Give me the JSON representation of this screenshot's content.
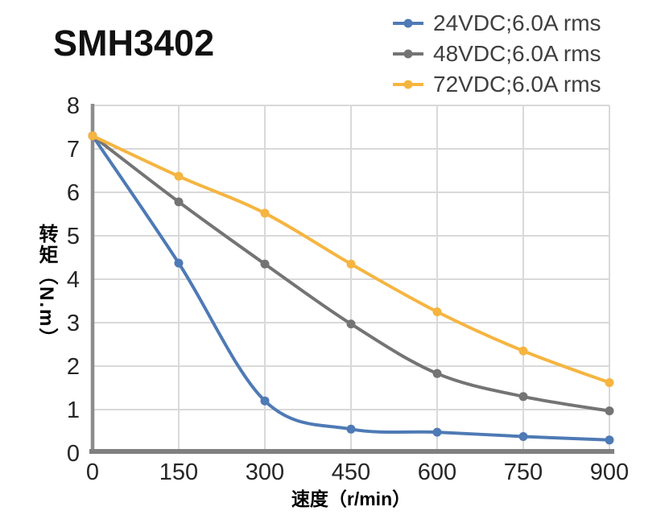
{
  "page": {
    "title": "SMH3402"
  },
  "chart_data": {
    "type": "line",
    "title": "SMH3402",
    "xlabel": "速度（r/min）",
    "ylabel": "转矩（N.m）",
    "x": [
      0,
      150,
      300,
      450,
      600,
      750,
      900
    ],
    "x_tick_labels": [
      "0",
      "150",
      "300",
      "450",
      "600",
      "750",
      "900"
    ],
    "y_ticks": [
      0,
      1,
      2,
      3,
      4,
      5,
      6,
      7,
      8
    ],
    "y_tick_labels": [
      "0",
      "1",
      "2",
      "3",
      "4",
      "5",
      "6",
      "7",
      "8"
    ],
    "xlim": [
      0,
      900
    ],
    "ylim": [
      0,
      8
    ],
    "grid": true,
    "legend_position": "top-right",
    "series": [
      {
        "name": "24VDC;6.0A rms",
        "color": "#4E7AB5",
        "values": [
          7.3,
          4.37,
          1.2,
          0.55,
          0.48,
          0.38,
          0.3
        ]
      },
      {
        "name": "48VDC;6.0A rms",
        "color": "#747474",
        "values": [
          7.3,
          5.78,
          4.35,
          2.97,
          1.83,
          1.3,
          0.97
        ]
      },
      {
        "name": "72VDC;6.0A rms",
        "color": "#F5B540",
        "values": [
          7.3,
          6.37,
          5.52,
          4.35,
          3.25,
          2.35,
          1.62
        ]
      }
    ],
    "colors": {
      "grid": "#D9D9D9",
      "axis": "#808080",
      "tick_text": "#262626",
      "legend_text": "#3F3F3F",
      "title_text": "#111111",
      "background": "#FFFFFF"
    }
  }
}
